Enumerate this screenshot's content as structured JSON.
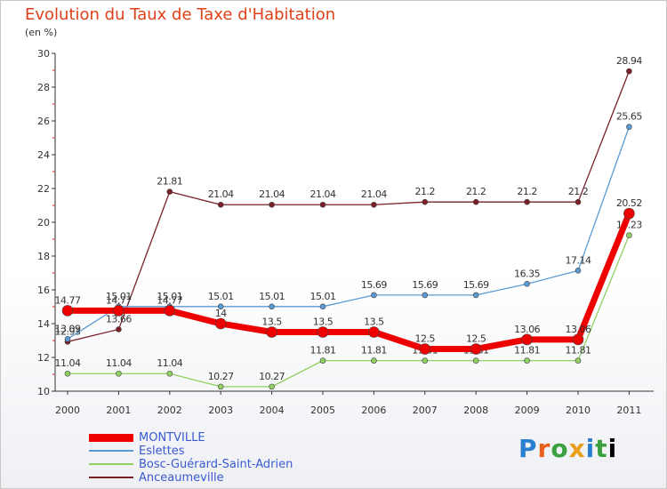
{
  "title": "Evolution du Taux de Taxe d'Habitation",
  "unit_label": "(en %)",
  "logo_text": "Proxiti",
  "chart_data": {
    "type": "line",
    "title": "Evolution du Taux de Taxe d'Habitation",
    "ylabel": "(en %)",
    "xlabel": "",
    "ylim": [
      10,
      30
    ],
    "yticks": [
      10,
      12,
      14,
      16,
      18,
      20,
      22,
      24,
      26,
      28,
      30
    ],
    "x": [
      "2000",
      "2001",
      "2002",
      "2003",
      "2004",
      "2005",
      "2006",
      "2007",
      "2008",
      "2009",
      "2010",
      "2011"
    ],
    "grid": false,
    "legend_position": "bottom-left",
    "series": [
      {
        "name": "Anceaumeville",
        "color": "#7a1f28",
        "values": [
          12.93,
          13.66,
          21.81,
          21.04,
          21.04,
          21.04,
          21.04,
          21.2,
          21.2,
          21.2,
          21.2,
          28.94
        ],
        "labels": [
          "12.93",
          "13.66",
          "21.81",
          "21.04",
          "21.04",
          "21.04",
          "21.04",
          "21.2",
          "21.2",
          "21.2",
          "21.2",
          "28.94"
        ]
      },
      {
        "name": "Eslettes",
        "color": "#5a9ad2",
        "values": [
          13.09,
          15.01,
          15.01,
          15.01,
          15.01,
          15.01,
          15.69,
          15.69,
          15.69,
          16.35,
          17.14,
          25.65
        ],
        "labels": [
          "13.09",
          "15.01",
          "15.01",
          "15.01",
          "15.01",
          "15.01",
          "15.69",
          "15.69",
          "15.69",
          "16.35",
          "17.14",
          "25.65"
        ]
      },
      {
        "name": "Bosc-Guérard-Saint-Adrien",
        "color": "#90d060",
        "values": [
          11.04,
          11.04,
          11.04,
          10.27,
          10.27,
          11.81,
          11.81,
          11.81,
          11.81,
          11.81,
          11.81,
          19.23
        ],
        "labels": [
          "11.04",
          "11.04",
          "11.04",
          "10.27",
          "10.27",
          "11.81",
          "11.81",
          "11.81",
          "11.81",
          "11.81",
          "11.81",
          "19.23"
        ]
      },
      {
        "name": "MONTVILLE",
        "color": "#ee0000",
        "values": [
          14.77,
          14.77,
          14.77,
          14.0,
          13.5,
          13.5,
          13.5,
          12.5,
          12.5,
          13.06,
          13.06,
          20.52
        ],
        "labels": [
          "14.77",
          "14.77",
          "14.77",
          "14",
          "13.5",
          "13.5",
          "13.5",
          "12.5",
          "12.5",
          "13.06",
          "13.06",
          "20.52"
        ]
      }
    ],
    "legend": [
      "MONTVILLE",
      "Eslettes",
      "Bosc-Guérard-Saint-Adrien",
      "Anceaumeville"
    ]
  }
}
